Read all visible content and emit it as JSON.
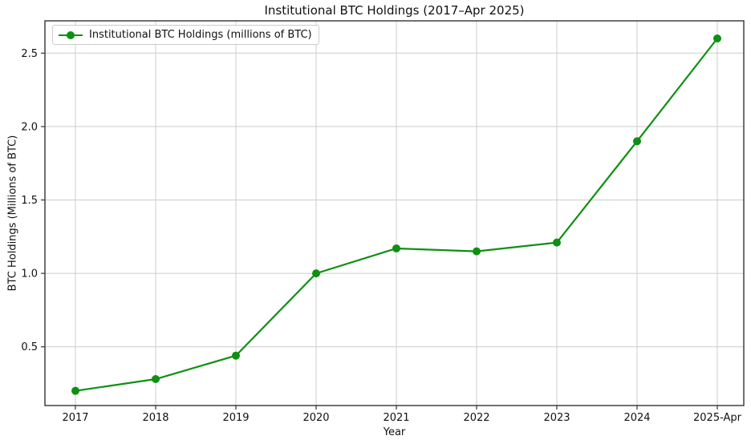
{
  "chart_data": {
    "type": "line",
    "title": "Institutional BTC Holdings (2017–Apr 2025)",
    "xlabel": "Year",
    "ylabel": "BTC Holdings (Millions of BTC)",
    "categories": [
      "2017",
      "2018",
      "2019",
      "2020",
      "2021",
      "2022",
      "2023",
      "2024",
      "2025-Apr"
    ],
    "series": [
      {
        "name": "Institutional BTC Holdings (millions of BTC)",
        "values": [
          0.2,
          0.28,
          0.44,
          1.0,
          1.17,
          1.15,
          1.21,
          1.9,
          2.6
        ],
        "color": "#0e9012",
        "marker": "circle"
      }
    ],
    "yticks": [
      0.5,
      1.0,
      1.5,
      2.0,
      2.5
    ],
    "ytick_labels": [
      "0.5",
      "1.0",
      "1.5",
      "2.0",
      "2.5"
    ],
    "ylim": [
      0.1,
      2.72
    ],
    "xlim": [
      -0.38,
      8.33
    ],
    "grid": true,
    "legend_position": "upper-left",
    "colors": {
      "grid": "#cccccc",
      "spine": "#333333",
      "text": "#111111",
      "background": "#ffffff"
    }
  }
}
